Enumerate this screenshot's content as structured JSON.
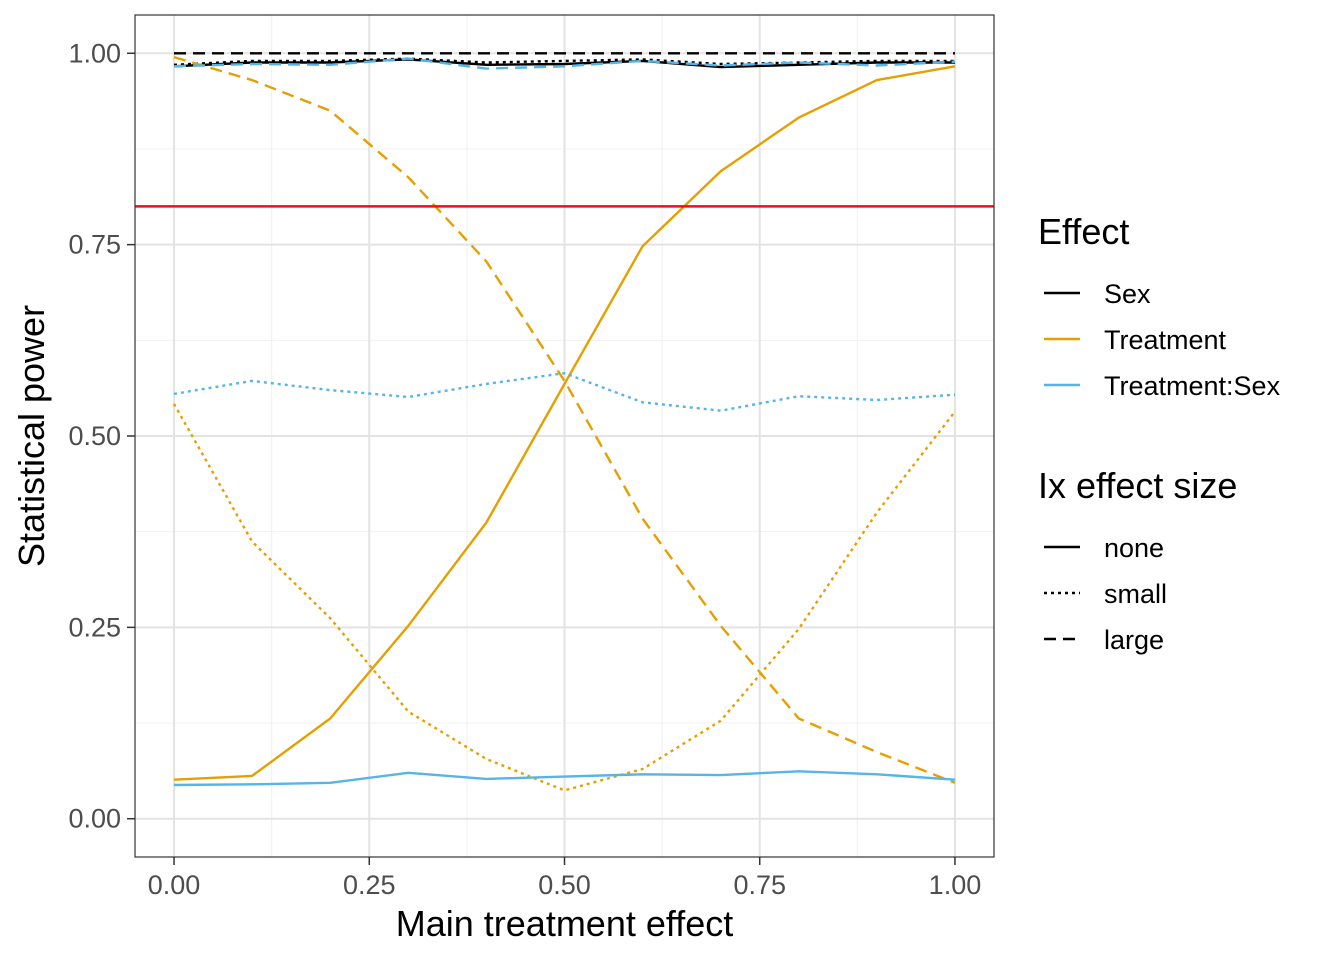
{
  "chart_data": {
    "type": "line",
    "title": "",
    "xlabel": "Main treatment effect",
    "ylabel": "Statistical power",
    "xlim": [
      -0.05,
      1.05
    ],
    "ylim": [
      -0.05,
      1.05
    ],
    "x_ticks": [
      "0.00",
      "0.25",
      "0.50",
      "0.75",
      "1.00"
    ],
    "y_ticks": [
      "0.00",
      "0.25",
      "0.50",
      "0.75",
      "1.00"
    ],
    "x_tick_values": [
      0,
      0.25,
      0.5,
      0.75,
      1
    ],
    "y_tick_values": [
      0,
      0.25,
      0.5,
      0.75,
      1
    ],
    "grid": true,
    "x": [
      0,
      0.1,
      0.2,
      0.3,
      0.4,
      0.5,
      0.6,
      0.7,
      0.8,
      0.9,
      1.0
    ],
    "reference_line": {
      "y": 0.8,
      "color": "#e8111b"
    },
    "legend_position": "right",
    "legends": [
      {
        "title": "Effect",
        "entries": [
          {
            "label": "Sex",
            "color": "#000000",
            "linetype": "solid"
          },
          {
            "label": "Treatment",
            "color": "#e69f00",
            "linetype": "solid"
          },
          {
            "label": "Treatment:Sex",
            "color": "#56b4e9",
            "linetype": "solid"
          }
        ]
      },
      {
        "title": "Ix effect size",
        "entries": [
          {
            "label": "none",
            "color": "#000000",
            "linetype": "solid"
          },
          {
            "label": "small",
            "color": "#000000",
            "linetype": "dotted"
          },
          {
            "label": "large",
            "color": "#000000",
            "linetype": "dashed"
          }
        ]
      }
    ],
    "series": [
      {
        "effect": "Sex",
        "ix": "large",
        "color": "#000000",
        "linetype": "dashed",
        "values": [
          1.0,
          1.0,
          1.0,
          1.0,
          1.0,
          1.0,
          1.0,
          1.0,
          1.0,
          1.0,
          1.0
        ]
      },
      {
        "effect": "Sex",
        "ix": "small",
        "color": "#000000",
        "linetype": "dotted",
        "values": [
          0.985,
          0.99,
          0.99,
          0.993,
          0.988,
          0.99,
          0.992,
          0.986,
          0.988,
          0.99,
          0.99
        ]
      },
      {
        "effect": "Sex",
        "ix": "none",
        "color": "#000000",
        "linetype": "solid",
        "values": [
          0.983,
          0.988,
          0.988,
          0.992,
          0.985,
          0.986,
          0.99,
          0.982,
          0.985,
          0.988,
          0.988
        ]
      },
      {
        "effect": "Treatment",
        "ix": "none",
        "color": "#e69f00",
        "linetype": "solid",
        "values": [
          0.051,
          0.056,
          0.131,
          0.252,
          0.387,
          0.568,
          0.748,
          0.846,
          0.916,
          0.965,
          0.983
        ]
      },
      {
        "effect": "Treatment",
        "ix": "small",
        "color": "#e69f00",
        "linetype": "dotted",
        "values": [
          0.542,
          0.362,
          0.262,
          0.14,
          0.078,
          0.037,
          0.065,
          0.128,
          0.248,
          0.4,
          0.532
        ]
      },
      {
        "effect": "Treatment",
        "ix": "large",
        "color": "#e69f00",
        "linetype": "dashed",
        "values": [
          0.995,
          0.965,
          0.925,
          0.838,
          0.728,
          0.572,
          0.392,
          0.252,
          0.131,
          0.087,
          0.047
        ]
      },
      {
        "effect": "Treatment:Sex",
        "ix": "none",
        "color": "#56b4e9",
        "linetype": "solid",
        "values": [
          0.044,
          0.045,
          0.047,
          0.06,
          0.052,
          0.055,
          0.058,
          0.057,
          0.062,
          0.058,
          0.051
        ]
      },
      {
        "effect": "Treatment:Sex",
        "ix": "small",
        "color": "#56b4e9",
        "linetype": "dotted",
        "values": [
          0.555,
          0.572,
          0.56,
          0.551,
          0.568,
          0.582,
          0.544,
          0.533,
          0.552,
          0.547,
          0.554
        ]
      },
      {
        "effect": "Treatment:Sex",
        "ix": "large",
        "color": "#56b4e9",
        "linetype": "dashed",
        "values": [
          0.983,
          0.986,
          0.985,
          0.993,
          0.98,
          0.983,
          0.99,
          0.984,
          0.988,
          0.984,
          0.989
        ]
      }
    ]
  }
}
